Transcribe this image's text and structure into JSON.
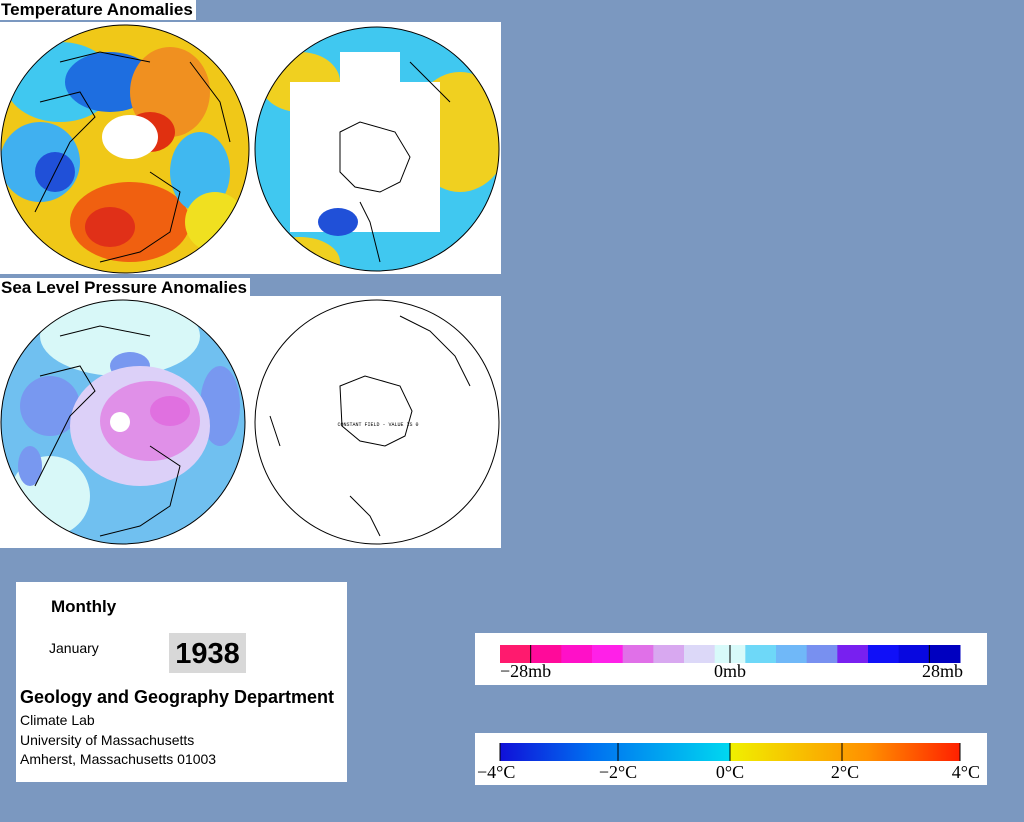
{
  "sections": {
    "temperature_title": "Temperature Anomalies",
    "pressure_title": "Sea Level Pressure Anomalies"
  },
  "maps": {
    "nh_temperature": "northern-hemisphere-temperature-map",
    "sh_temperature": "southern-hemisphere-temperature-map",
    "nh_pressure": "northern-hemisphere-pressure-map",
    "sh_pressure": "southern-hemisphere-pressure-map",
    "sh_pressure_note": "CONSTANT FIELD - VALUE IS 0"
  },
  "info": {
    "period": "Monthly",
    "month": "January",
    "year": "1938",
    "department": "Geology and Geography Department",
    "lab": "Climate Lab",
    "university": "University of Massachusetts",
    "address": "Amherst, Massachusetts 01003"
  },
  "legends": {
    "pressure": {
      "labels": [
        "−28mb",
        "0mb",
        "28mb"
      ],
      "colors": [
        "#ff1a6e",
        "#ff0a9a",
        "#ff10c8",
        "#ff20e8",
        "#e070e8",
        "#d8a8f0",
        "#dcd8f8",
        "#d8fafa",
        "#6ed8f8",
        "#70b8f8",
        "#7890f0",
        "#7820f0",
        "#1010f8",
        "#0808e0",
        "#0000c0"
      ]
    },
    "temperature": {
      "labels": [
        "−4°C",
        "−2°C",
        "0°C",
        "2°C",
        "4°C"
      ],
      "stops": [
        "#1010d8",
        "#0070f0",
        "#00d8f0",
        "#f0f000",
        "#ff9000",
        "#ff2000"
      ]
    }
  }
}
